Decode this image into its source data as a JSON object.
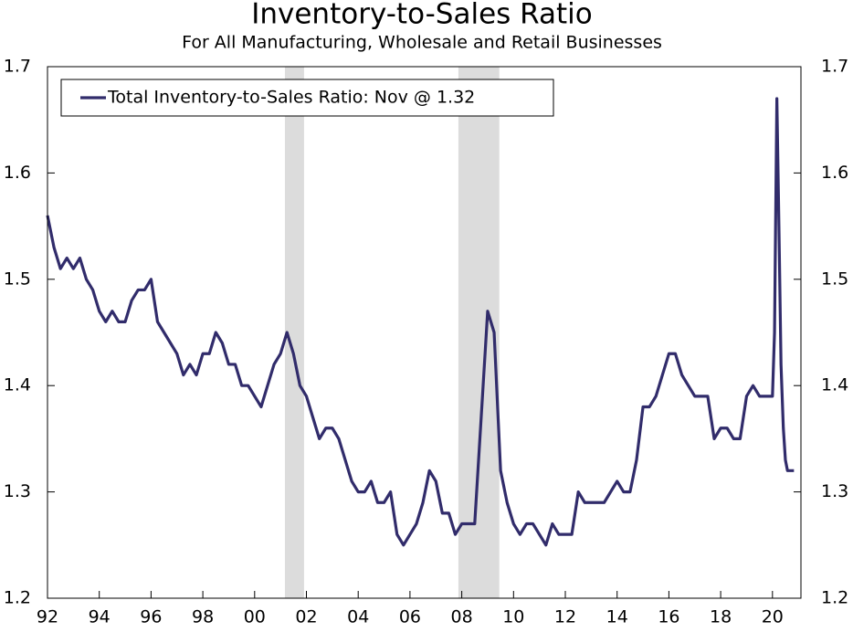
{
  "chart_data": {
    "type": "line",
    "title": "Inventory-to-Sales Ratio",
    "subtitle": "For All Manufacturing, Wholesale and Retail Businesses",
    "x": [
      1992.0,
      1992.25,
      1992.5,
      1992.75,
      1993.0,
      1993.25,
      1993.5,
      1993.75,
      1994.0,
      1994.25,
      1994.5,
      1994.75,
      1995.0,
      1995.25,
      1995.5,
      1995.75,
      1996.0,
      1996.25,
      1996.5,
      1996.75,
      1997.0,
      1997.25,
      1997.5,
      1997.75,
      1998.0,
      1998.25,
      1998.5,
      1998.75,
      1999.0,
      1999.25,
      1999.5,
      1999.75,
      2000.0,
      2000.25,
      2000.5,
      2000.75,
      2001.0,
      2001.25,
      2001.5,
      2001.75,
      2002.0,
      2002.25,
      2002.5,
      2002.75,
      2003.0,
      2003.25,
      2003.5,
      2003.75,
      2004.0,
      2004.25,
      2004.5,
      2004.75,
      2005.0,
      2005.25,
      2005.5,
      2005.75,
      2006.0,
      2006.25,
      2006.5,
      2006.75,
      2007.0,
      2007.25,
      2007.5,
      2007.75,
      2008.0,
      2008.25,
      2008.5,
      2008.75,
      2009.0,
      2009.25,
      2009.5,
      2009.75,
      2010.0,
      2010.25,
      2010.5,
      2010.75,
      2011.0,
      2011.25,
      2011.5,
      2011.75,
      2012.0,
      2012.25,
      2012.5,
      2012.75,
      2013.0,
      2013.25,
      2013.5,
      2013.75,
      2014.0,
      2014.25,
      2014.5,
      2014.75,
      2015.0,
      2015.25,
      2015.5,
      2015.75,
      2016.0,
      2016.25,
      2016.5,
      2016.75,
      2017.0,
      2017.25,
      2017.5,
      2017.75,
      2018.0,
      2018.25,
      2018.5,
      2018.75,
      2019.0,
      2019.25,
      2019.5,
      2019.75,
      2020.0,
      2020.08,
      2020.17,
      2020.25,
      2020.33,
      2020.42,
      2020.5,
      2020.58,
      2020.67,
      2020.75,
      2020.83
    ],
    "series": [
      {
        "name": "Total Inventory-to-Sales Ratio: Nov @ 1.32",
        "color": "#312c6b",
        "values": [
          1.56,
          1.53,
          1.51,
          1.52,
          1.51,
          1.52,
          1.5,
          1.49,
          1.47,
          1.46,
          1.47,
          1.46,
          1.46,
          1.48,
          1.49,
          1.49,
          1.5,
          1.46,
          1.45,
          1.44,
          1.43,
          1.41,
          1.42,
          1.41,
          1.43,
          1.43,
          1.45,
          1.44,
          1.42,
          1.42,
          1.4,
          1.4,
          1.39,
          1.38,
          1.4,
          1.42,
          1.43,
          1.45,
          1.43,
          1.4,
          1.39,
          1.37,
          1.35,
          1.36,
          1.36,
          1.35,
          1.33,
          1.31,
          1.3,
          1.3,
          1.31,
          1.29,
          1.29,
          1.3,
          1.26,
          1.25,
          1.26,
          1.27,
          1.29,
          1.32,
          1.31,
          1.28,
          1.28,
          1.26,
          1.27,
          1.27,
          1.27,
          1.37,
          1.47,
          1.45,
          1.32,
          1.29,
          1.27,
          1.26,
          1.27,
          1.27,
          1.26,
          1.25,
          1.27,
          1.26,
          1.26,
          1.26,
          1.3,
          1.29,
          1.29,
          1.29,
          1.29,
          1.3,
          1.31,
          1.3,
          1.3,
          1.33,
          1.38,
          1.38,
          1.39,
          1.41,
          1.43,
          1.43,
          1.41,
          1.4,
          1.39,
          1.39,
          1.39,
          1.35,
          1.36,
          1.36,
          1.35,
          1.35,
          1.39,
          1.4,
          1.39,
          1.39,
          1.39,
          1.45,
          1.67,
          1.55,
          1.42,
          1.36,
          1.33,
          1.32,
          1.32,
          1.32,
          1.32
        ]
      }
    ],
    "recessions": [
      {
        "start": 2001.17,
        "end": 2001.91
      },
      {
        "start": 2007.87,
        "end": 2009.45
      }
    ],
    "recession_color": "#dcdcdc",
    "xlim": [
      1992,
      2021.1
    ],
    "xticks": [
      {
        "value": 1992,
        "label": "92"
      },
      {
        "value": 1994,
        "label": "94"
      },
      {
        "value": 1996,
        "label": "96"
      },
      {
        "value": 1998,
        "label": "98"
      },
      {
        "value": 2000,
        "label": "00"
      },
      {
        "value": 2002,
        "label": "02"
      },
      {
        "value": 2004,
        "label": "04"
      },
      {
        "value": 2006,
        "label": "06"
      },
      {
        "value": 2008,
        "label": "08"
      },
      {
        "value": 2010,
        "label": "10"
      },
      {
        "value": 2012,
        "label": "12"
      },
      {
        "value": 2014,
        "label": "14"
      },
      {
        "value": 2016,
        "label": "16"
      },
      {
        "value": 2018,
        "label": "18"
      },
      {
        "value": 2020,
        "label": "20"
      }
    ],
    "ylim": [
      1.2,
      1.7
    ],
    "yticks": [
      1.2,
      1.3,
      1.4,
      1.5,
      1.6,
      1.7
    ],
    "y2lim": [
      1.2,
      1.7
    ],
    "y2ticks": [
      1.2,
      1.3,
      1.4,
      1.5,
      1.6,
      1.7
    ],
    "legend": "top-left"
  }
}
